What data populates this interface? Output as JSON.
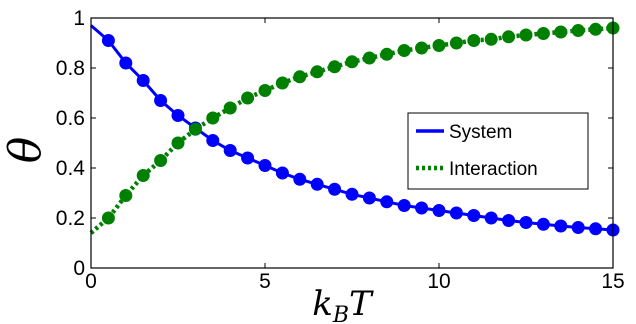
{
  "chart_data": {
    "type": "line",
    "xlabel": "k",
    "xlabel_subscript": "B",
    "xlabel_suffix": "T",
    "ylabel": "θ",
    "xlim": [
      0,
      15
    ],
    "ylim": [
      0,
      1
    ],
    "xticks": [
      0,
      5,
      10,
      15
    ],
    "yticks": [
      0,
      0.2,
      0.4,
      0.6,
      0.8,
      1
    ],
    "ytick_labels": [
      "0",
      "0.2",
      "0.4",
      "0.6",
      "0.8",
      "1"
    ],
    "xtick_labels": [
      "0",
      "5",
      "10",
      "15"
    ],
    "grid": false,
    "legend_position": "right",
    "series": [
      {
        "name": "System",
        "color": "#0000ff",
        "line_style": "solid",
        "line": {
          "x": [
            0,
            0.5,
            1,
            1.5,
            2,
            2.5,
            3,
            3.5,
            4,
            4.5,
            5,
            5.5,
            6,
            6.5,
            7,
            7.5,
            8,
            8.5,
            9,
            9.5,
            10,
            10.5,
            11,
            11.5,
            12,
            12.5,
            13,
            13.5,
            14,
            14.5,
            15
          ],
          "y": [
            0.97,
            0.91,
            0.82,
            0.75,
            0.67,
            0.61,
            0.56,
            0.51,
            0.47,
            0.44,
            0.41,
            0.38,
            0.355,
            0.335,
            0.315,
            0.295,
            0.28,
            0.265,
            0.25,
            0.24,
            0.23,
            0.22,
            0.21,
            0.2,
            0.19,
            0.182,
            0.175,
            0.168,
            0.162,
            0.157,
            0.152
          ]
        },
        "points": {
          "x": [
            0.5,
            1,
            1.5,
            2,
            2.5,
            3,
            3.5,
            4,
            4.5,
            5,
            5.5,
            6,
            6.5,
            7,
            7.5,
            8,
            8.5,
            9,
            9.5,
            10,
            10.5,
            11,
            11.5,
            12,
            12.5,
            13,
            13.5,
            14,
            14.5,
            15
          ],
          "y": [
            0.91,
            0.82,
            0.75,
            0.67,
            0.61,
            0.56,
            0.51,
            0.47,
            0.44,
            0.41,
            0.38,
            0.355,
            0.335,
            0.315,
            0.295,
            0.28,
            0.265,
            0.25,
            0.24,
            0.23,
            0.22,
            0.21,
            0.2,
            0.19,
            0.182,
            0.175,
            0.168,
            0.162,
            0.157,
            0.152
          ]
        }
      },
      {
        "name": "Interaction",
        "color": "#008000",
        "line_style": "dotted",
        "line": {
          "x": [
            0,
            0.5,
            1,
            1.5,
            2,
            2.5,
            3,
            3.5,
            4,
            4.5,
            5,
            5.5,
            6,
            6.5,
            7,
            7.5,
            8,
            8.5,
            9,
            9.5,
            10,
            10.5,
            11,
            11.5,
            12,
            12.5,
            13,
            13.5,
            14,
            14.5,
            15
          ],
          "y": [
            0.14,
            0.2,
            0.29,
            0.37,
            0.43,
            0.5,
            0.555,
            0.6,
            0.64,
            0.68,
            0.71,
            0.74,
            0.765,
            0.785,
            0.805,
            0.825,
            0.84,
            0.855,
            0.87,
            0.88,
            0.89,
            0.9,
            0.91,
            0.915,
            0.925,
            0.932,
            0.938,
            0.944,
            0.95,
            0.955,
            0.96
          ]
        },
        "points": {
          "x": [
            0.5,
            1,
            1.5,
            2,
            2.5,
            3,
            3.5,
            4,
            4.5,
            5,
            5.5,
            6,
            6.5,
            7,
            7.5,
            8,
            8.5,
            9,
            9.5,
            10,
            10.5,
            11,
            11.5,
            12,
            12.5,
            13,
            13.5,
            14,
            14.5,
            15
          ],
          "y": [
            0.2,
            0.29,
            0.37,
            0.43,
            0.5,
            0.555,
            0.6,
            0.64,
            0.68,
            0.71,
            0.74,
            0.765,
            0.785,
            0.805,
            0.825,
            0.84,
            0.855,
            0.87,
            0.88,
            0.89,
            0.9,
            0.91,
            0.915,
            0.925,
            0.932,
            0.938,
            0.944,
            0.95,
            0.955,
            0.96
          ]
        }
      }
    ]
  }
}
